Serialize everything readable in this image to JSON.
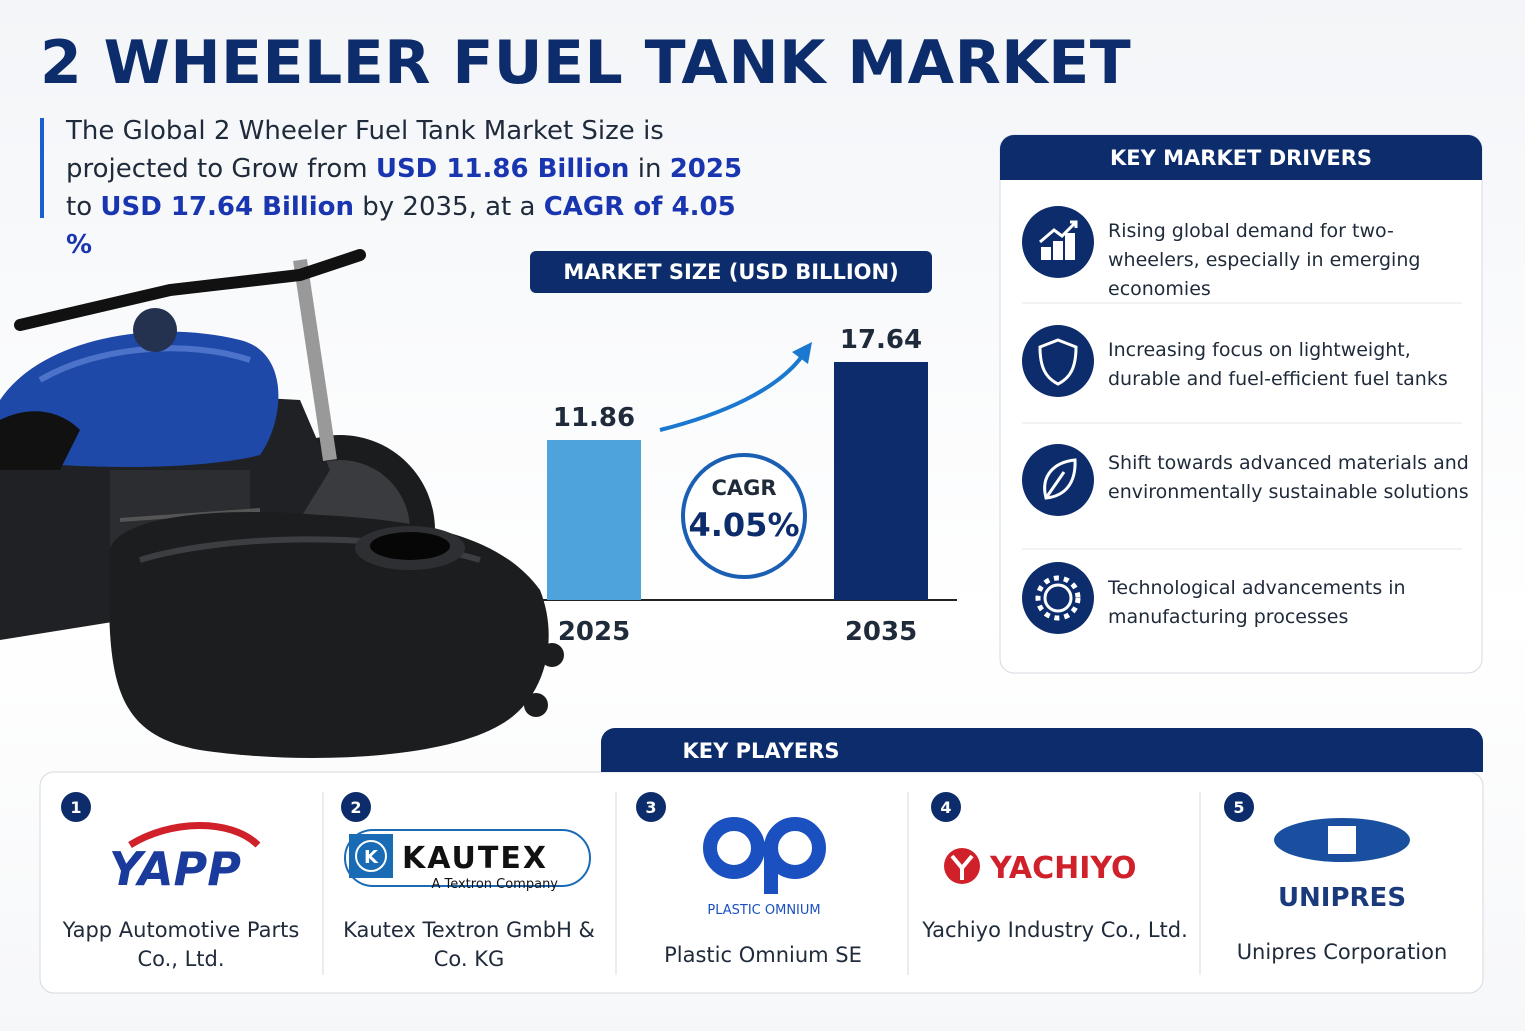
{
  "header": {
    "title": "2 WHEELER FUEL TANK MARKET",
    "summary": [
      {
        "text": "The Global 2 Wheeler Fuel Tank Market Size is projected to Grow from ",
        "highlight": false
      },
      {
        "text": "USD 11.86 Billion",
        "highlight": true
      },
      {
        "text": " in ",
        "highlight": false
      },
      {
        "text": "2025",
        "highlight": true
      },
      {
        "text": " to ",
        "highlight": false
      },
      {
        "text": "USD 17.64 Billion",
        "highlight": true
      },
      {
        "text": " by 2035, at a ",
        "highlight": false
      },
      {
        "text": "CAGR of 4.05 %",
        "highlight": true
      }
    ]
  },
  "chart_data": {
    "type": "bar",
    "title": "MARKET SIZE (USD BILLION)",
    "categories": [
      "2025",
      "2035"
    ],
    "values": [
      11.86,
      17.64
    ],
    "colors": [
      "#4fa3dc",
      "#0d2c6b"
    ],
    "annotation": {
      "label": "CAGR",
      "value": "4.05%"
    }
  },
  "drivers": {
    "title": "KEY MARKET DRIVERS",
    "items": [
      "Rising global demand for two-wheelers, especially in emerging economies",
      "Increasing focus on lightweight, durable and fuel-efficient fuel tanks",
      "Shift towards advanced materials and environmentally sustainable solutions",
      "Technological advancements in manufacturing processes"
    ]
  },
  "players": {
    "title": "KEY PLAYERS",
    "items": [
      {
        "rank": "1",
        "logo": "YAPP",
        "name": "Yapp Automotive Parts Co., Ltd."
      },
      {
        "rank": "2",
        "logo": "KAUTEX",
        "tagline": "A Textron Company",
        "name": "Kautex Textron GmbH & Co. KG"
      },
      {
        "rank": "3",
        "logo": "PLASTIC OMNIUM",
        "name": "Plastic Omnium SE"
      },
      {
        "rank": "4",
        "logo": "YACHIYO",
        "name": "Yachiyo Industry Co., Ltd."
      },
      {
        "rank": "5",
        "logo": "UNIPRES",
        "name": "Unipres Corporation"
      }
    ]
  }
}
